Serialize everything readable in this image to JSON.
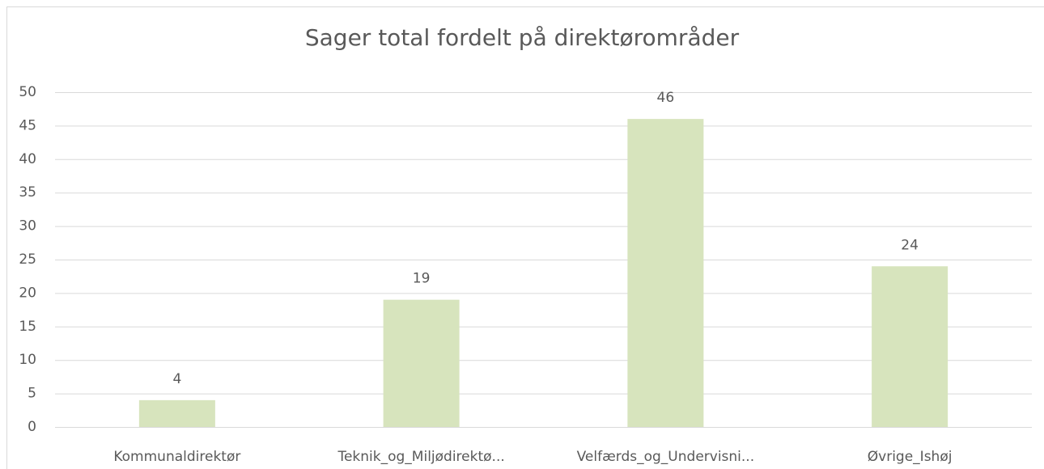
{
  "chart_data": {
    "type": "bar",
    "title": "Sager total fordelt på direktørområder",
    "categories": [
      "Kommunaldirektør",
      "Teknik_og_Miljødirektø...",
      "Velfærds_og_Undervisni...",
      "Øvrige_Ishøj"
    ],
    "values": [
      4,
      19,
      46,
      24
    ],
    "color": "#d7e4bd",
    "ylim": [
      0,
      50
    ],
    "yticks": [
      0,
      5,
      10,
      15,
      20,
      25,
      30,
      35,
      40,
      45,
      50
    ],
    "grid": true,
    "data_labels": true
  }
}
